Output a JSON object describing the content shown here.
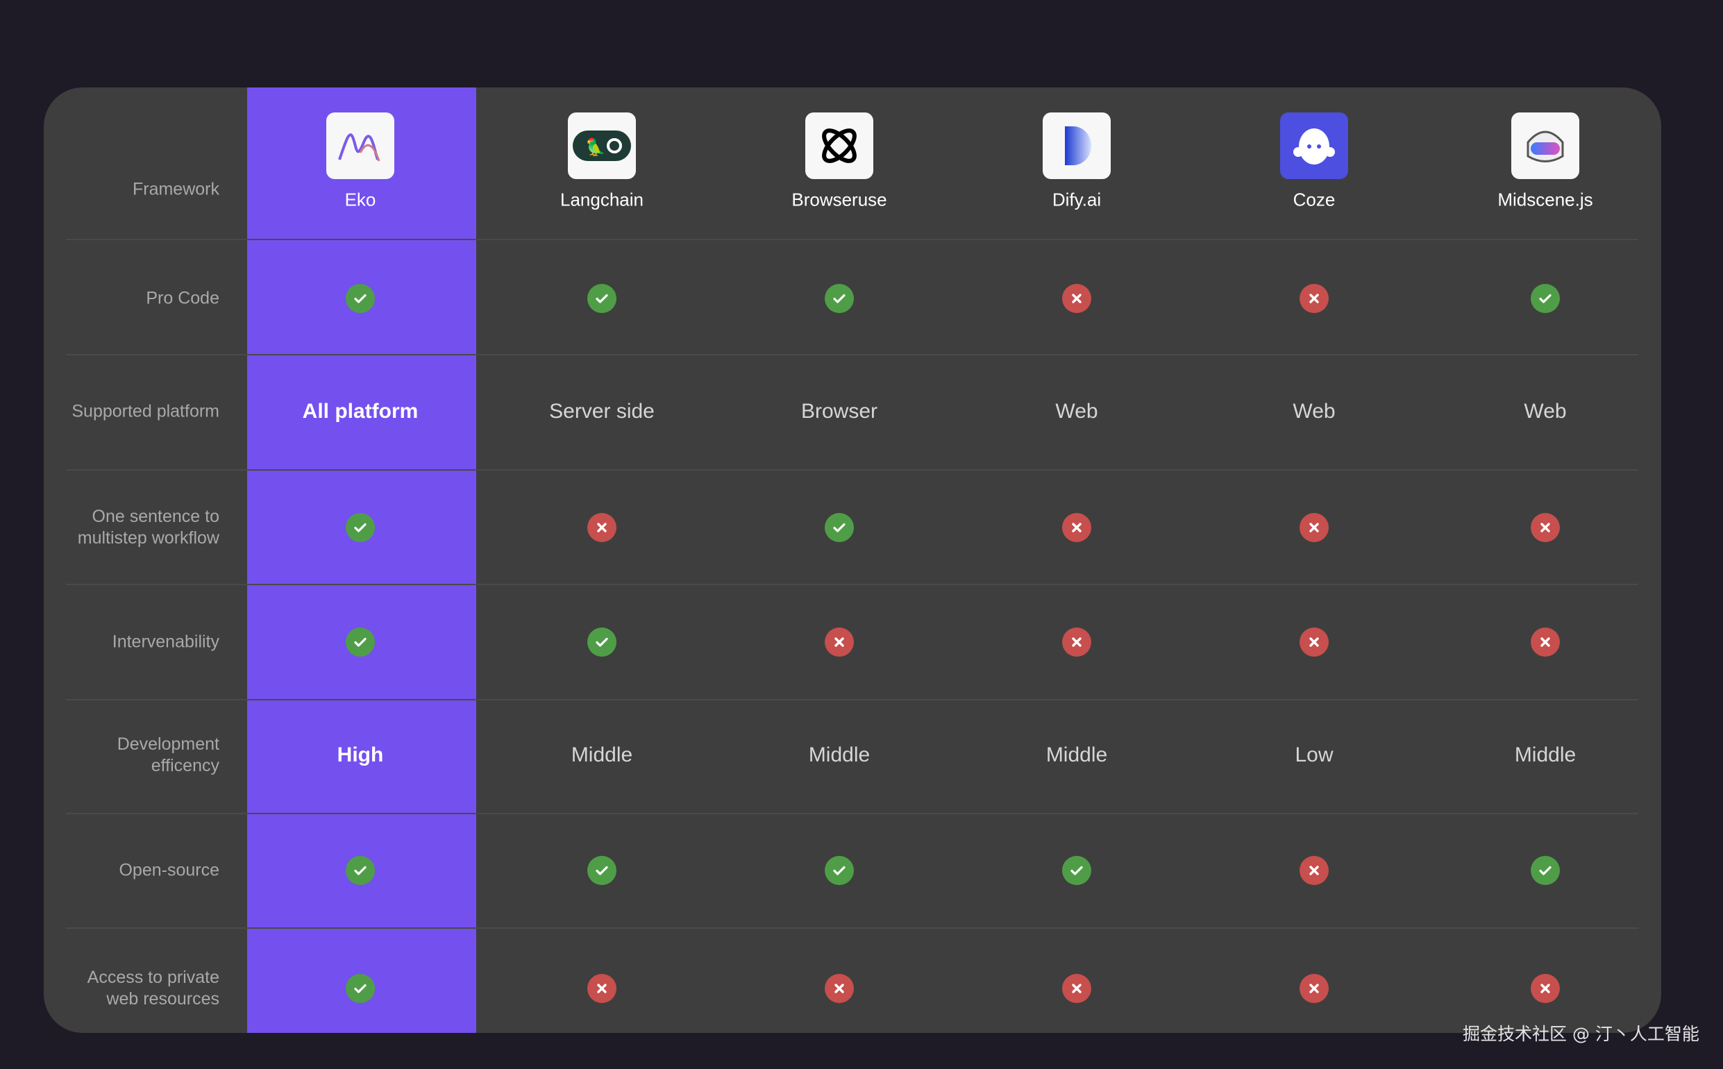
{
  "header_label": "Framework",
  "frameworks": [
    {
      "name": "Eko",
      "icon": "eko-logo-icon",
      "logo_bg": "#f7f7f7"
    },
    {
      "name": "Langchain",
      "icon": "langchain-logo-icon",
      "logo_bg": "#f7f7f7"
    },
    {
      "name": "Browseruse",
      "icon": "browseruse-logo-icon",
      "logo_bg": "#f7f7f7"
    },
    {
      "name": "Dify.ai",
      "icon": "dify-logo-icon",
      "logo_bg": "#f7f7f7"
    },
    {
      "name": "Coze",
      "icon": "coze-logo-icon",
      "logo_bg": "#4c4fe0"
    },
    {
      "name": "Midscene.js",
      "icon": "midscene-logo-icon",
      "logo_bg": "#f7f7f7"
    }
  ],
  "rows": [
    {
      "label": "Pro Code",
      "values": [
        "yes",
        "yes",
        "yes",
        "no",
        "no",
        "yes"
      ]
    },
    {
      "label": "Supported platform",
      "values": [
        "All platform",
        "Server side",
        "Browser",
        "Web",
        "Web",
        "Web"
      ]
    },
    {
      "label": "One sentence to multistep workflow",
      "values": [
        "yes",
        "no",
        "yes",
        "no",
        "no",
        "no"
      ]
    },
    {
      "label": "Intervenability",
      "values": [
        "yes",
        "yes",
        "no",
        "no",
        "no",
        "no"
      ]
    },
    {
      "label": "Development efficency",
      "values": [
        "High",
        "Middle",
        "Middle",
        "Middle",
        "Low",
        "Middle"
      ]
    },
    {
      "label": "Open-source",
      "values": [
        "yes",
        "yes",
        "yes",
        "yes",
        "no",
        "yes"
      ]
    },
    {
      "label": "Access to private web resources",
      "values": [
        "yes",
        "no",
        "no",
        "no",
        "no",
        "no"
      ]
    }
  ],
  "colors": {
    "highlight": "#7450ee",
    "yes": "#4f9e47",
    "no": "#c74f4d",
    "card": "#3e3e3e",
    "background": "#1e1b27"
  },
  "watermark": "掘金技术社区 @ 汀丶人工智能"
}
